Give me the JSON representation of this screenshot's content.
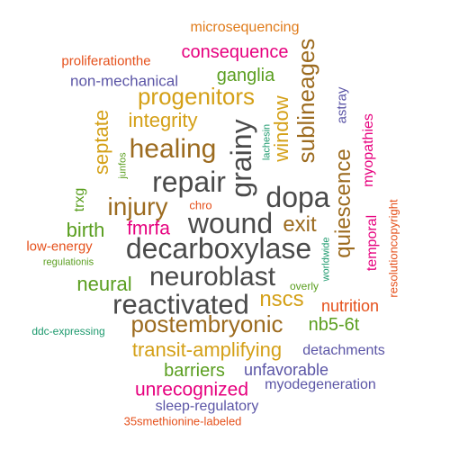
{
  "palette": {
    "orange": "#e07b1a",
    "magenta": "#e6007e",
    "gold": "#d4a017",
    "brown": "#9c6b1f",
    "green": "#5a9e1f",
    "indigo": "#5b55a6",
    "gray": "#4a4a4a",
    "red": "#e5501b",
    "teal": "#1e9a6e"
  },
  "words": [
    {
      "text": "microsequencing",
      "color": "orange"
    },
    {
      "text": "consequence",
      "color": "magenta"
    },
    {
      "text": "proliferationthe",
      "color": "red"
    },
    {
      "text": "ganglia",
      "color": "green"
    },
    {
      "text": "non-mechanical",
      "color": "indigo"
    },
    {
      "text": "progenitors",
      "color": "gold"
    },
    {
      "text": "integrity",
      "color": "gold"
    },
    {
      "text": "healing",
      "color": "brown"
    },
    {
      "text": "repair",
      "color": "gray"
    },
    {
      "text": "injury",
      "color": "brown"
    },
    {
      "text": "dopa",
      "color": "gray"
    },
    {
      "text": "chro",
      "color": "red"
    },
    {
      "text": "fmrfa",
      "color": "magenta"
    },
    {
      "text": "wound",
      "color": "gray"
    },
    {
      "text": "exit",
      "color": "brown"
    },
    {
      "text": "birth",
      "color": "green"
    },
    {
      "text": "low-energy",
      "color": "red"
    },
    {
      "text": "regulationis",
      "color": "green"
    },
    {
      "text": "decarboxylase",
      "color": "gray"
    },
    {
      "text": "neuroblast",
      "color": "gray"
    },
    {
      "text": "neural",
      "color": "green"
    },
    {
      "text": "overly",
      "color": "green"
    },
    {
      "text": "reactivated",
      "color": "gray"
    },
    {
      "text": "nscs",
      "color": "gold"
    },
    {
      "text": "nutrition",
      "color": "red"
    },
    {
      "text": "postembryonic",
      "color": "brown"
    },
    {
      "text": "nb5-6t",
      "color": "green"
    },
    {
      "text": "ddc-expressing",
      "color": "teal"
    },
    {
      "text": "transit-amplifying",
      "color": "gold"
    },
    {
      "text": "detachments",
      "color": "indigo"
    },
    {
      "text": "barriers",
      "color": "green"
    },
    {
      "text": "unfavorable",
      "color": "indigo"
    },
    {
      "text": "unrecognized",
      "color": "magenta"
    },
    {
      "text": "myodegeneration",
      "color": "indigo"
    },
    {
      "text": "sleep-regulatory",
      "color": "indigo"
    },
    {
      "text": "35smethionine-labeled",
      "color": "red"
    },
    {
      "text": "sublineages",
      "color": "brown"
    },
    {
      "text": "window",
      "color": "gold"
    },
    {
      "text": "grainy",
      "color": "gray"
    },
    {
      "text": "septate",
      "color": "gold"
    },
    {
      "text": "junfos",
      "color": "green"
    },
    {
      "text": "trxg",
      "color": "green"
    },
    {
      "text": "lachesin",
      "color": "teal"
    },
    {
      "text": "astray",
      "color": "indigo"
    },
    {
      "text": "myopathies",
      "color": "magenta"
    },
    {
      "text": "quiescence",
      "color": "brown"
    },
    {
      "text": "temporal",
      "color": "magenta"
    },
    {
      "text": "worldwide",
      "color": "teal"
    },
    {
      "text": "resolutioncopyright",
      "color": "red"
    }
  ]
}
